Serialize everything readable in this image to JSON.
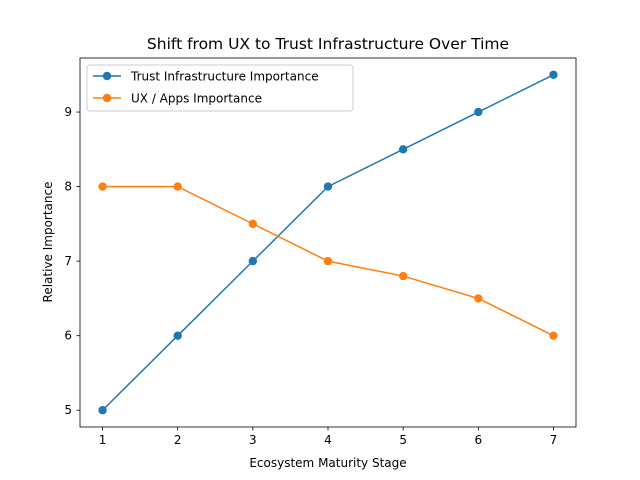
{
  "chart_data": {
    "type": "line",
    "title": "Shift from UX to Trust Infrastructure Over Time",
    "xlabel": "Ecosystem Maturity Stage",
    "ylabel": "Relative Importance",
    "x": [
      1,
      2,
      3,
      4,
      5,
      6,
      7
    ],
    "x_ticks": [
      "1",
      "2",
      "3",
      "4",
      "5",
      "6",
      "7"
    ],
    "y_ticks": [
      "5",
      "6",
      "7",
      "8",
      "9"
    ],
    "xlim": [
      0.7,
      7.3
    ],
    "ylim": [
      4.775,
      9.725
    ],
    "grid": false,
    "legend_position": "upper-left",
    "series": [
      {
        "name": "Trust Infrastructure Importance",
        "color": "#1f77b4",
        "marker": "circle",
        "values": [
          5,
          6,
          7,
          8,
          8.5,
          9,
          9.5
        ]
      },
      {
        "name": "UX / Apps Importance",
        "color": "#ff7f0e",
        "marker": "circle",
        "values": [
          8,
          8,
          7.5,
          7,
          6.8,
          6.5,
          6
        ]
      }
    ]
  }
}
